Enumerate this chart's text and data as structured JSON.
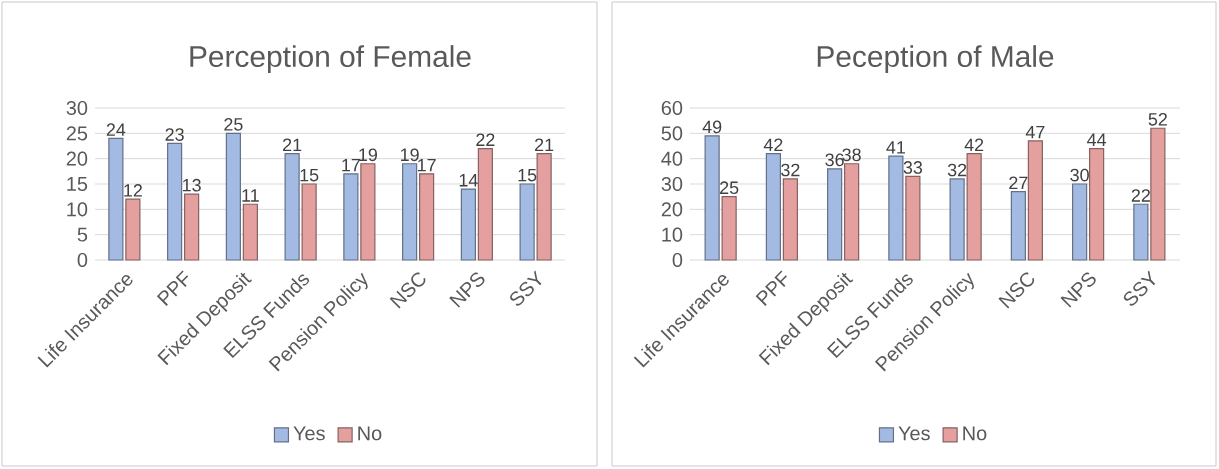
{
  "chart_data": [
    {
      "type": "bar",
      "title": "Perception of Female",
      "categories": [
        "Life Insurance",
        "PPF",
        "Fixed Deposit",
        "ELSS Funds",
        "Pension Policy",
        "NSC",
        "NPS",
        "SSY"
      ],
      "series": [
        {
          "name": "Yes",
          "color": "#a3bbe2",
          "values": [
            24,
            23,
            25,
            21,
            17,
            19,
            14,
            15
          ]
        },
        {
          "name": "No",
          "color": "#e3a09e",
          "values": [
            12,
            13,
            11,
            15,
            19,
            17,
            22,
            21
          ]
        }
      ],
      "ylim": [
        0,
        30
      ],
      "yticks": [
        0,
        5,
        10,
        15,
        20,
        25,
        30
      ],
      "grid": "y",
      "legend": "bottom",
      "data_labels": true
    },
    {
      "type": "bar",
      "title": "Peception of Male",
      "categories": [
        "Life Insurance",
        "PPF",
        "Fixed Deposit",
        "ELSS Funds",
        "Pension Policy",
        "NSC",
        "NPS",
        "SSY"
      ],
      "series": [
        {
          "name": "Yes",
          "color": "#a3bbe2",
          "values": [
            49,
            42,
            36,
            41,
            32,
            27,
            30,
            22
          ]
        },
        {
          "name": "No",
          "color": "#e3a09e",
          "values": [
            25,
            32,
            38,
            33,
            42,
            47,
            44,
            52
          ]
        }
      ],
      "ylim": [
        0,
        60
      ],
      "yticks": [
        0,
        10,
        20,
        30,
        40,
        50,
        60
      ],
      "grid": "y",
      "legend": "bottom",
      "data_labels": true
    }
  ]
}
